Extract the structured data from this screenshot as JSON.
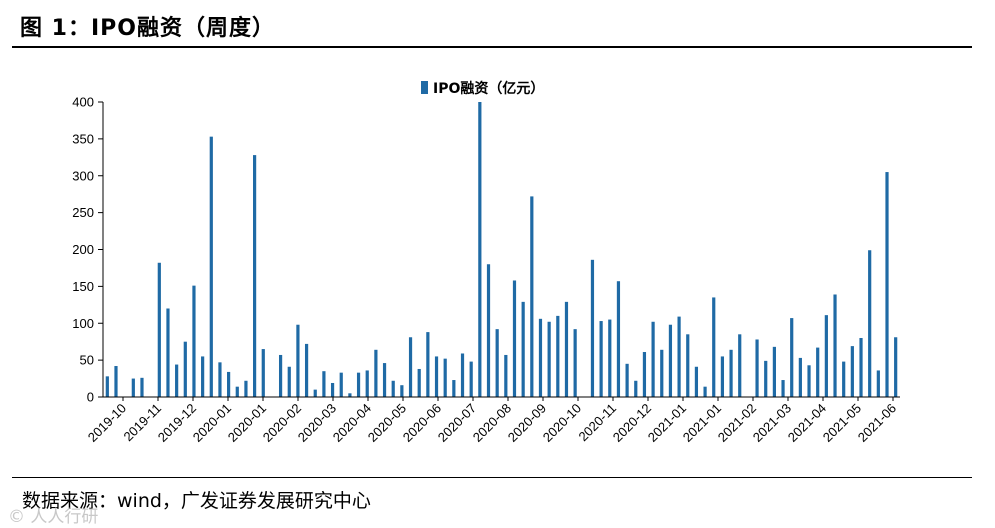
{
  "title": "图 1：IPO融资（周度）",
  "source": "数据来源：wind，广发证券发展研究中心",
  "watermark": "© 人人行研",
  "colors": {
    "bar": "#1f6aa5",
    "axis": "#000000"
  },
  "chart_data": {
    "type": "bar",
    "title": "",
    "xlabel": "",
    "ylabel": "",
    "ylim": [
      0,
      400
    ],
    "yticks": [
      0,
      50,
      100,
      150,
      200,
      250,
      300,
      350,
      400
    ],
    "legend": "top-center",
    "grid": false,
    "xtick_labels": [
      "2019-10",
      "2019-11",
      "2019-12",
      "2020-01",
      "2020-01",
      "2020-02",
      "2020-03",
      "2020-04",
      "2020-05",
      "2020-06",
      "2020-07",
      "2020-08",
      "2020-09",
      "2020-10",
      "2020-11",
      "2020-12",
      "2021-01",
      "2021-01",
      "2021-02",
      "2021-03",
      "2021-04",
      "2021-05",
      "2021-06"
    ],
    "series": [
      {
        "name": "IPO融资（亿元）",
        "values": [
          28,
          42,
          0,
          25,
          26,
          0,
          182,
          120,
          44,
          75,
          151,
          55,
          353,
          47,
          34,
          14,
          22,
          328,
          65,
          0,
          57,
          41,
          98,
          72,
          10,
          35,
          19,
          33,
          5,
          33,
          36,
          64,
          46,
          22,
          16,
          81,
          38,
          88,
          55,
          52,
          23,
          59,
          48,
          400,
          180,
          92,
          57,
          158,
          129,
          272,
          106,
          102,
          110,
          129,
          92,
          0,
          186,
          103,
          105,
          157,
          45,
          22,
          61,
          102,
          64,
          98,
          109,
          85,
          41,
          14,
          135,
          55,
          64,
          85,
          0,
          78,
          49,
          68,
          23,
          107,
          53,
          43,
          67,
          111,
          139,
          48,
          69,
          80,
          199,
          36,
          305,
          81
        ]
      }
    ]
  }
}
